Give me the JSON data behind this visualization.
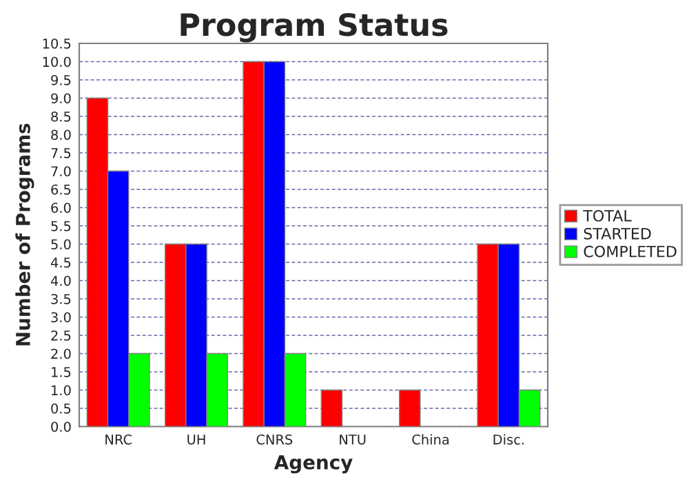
{
  "chart_data": {
    "type": "bar",
    "title": "Program Status",
    "xlabel": "Agency",
    "ylabel": "Number of Programs",
    "categories": [
      "NRC",
      "UH",
      "CNRS",
      "NTU",
      "China",
      "Disc."
    ],
    "series": [
      {
        "name": "TOTAL",
        "color": "#ff0000",
        "values": [
          9,
          5,
          10,
          1,
          1,
          5
        ]
      },
      {
        "name": "STARTED",
        "color": "#0000ff",
        "values": [
          7,
          5,
          10,
          0,
          0,
          5
        ]
      },
      {
        "name": "COMPLETED",
        "color": "#00ff00",
        "values": [
          2,
          2,
          2,
          0,
          0,
          1
        ]
      }
    ],
    "ylim": [
      0,
      10.5
    ],
    "yticks": [
      {
        "value": 0,
        "label": "0.0"
      },
      {
        "value": 0.5,
        "label": "0.5"
      },
      {
        "value": 1,
        "label": "1.0"
      },
      {
        "value": 1.5,
        "label": "1.5"
      },
      {
        "value": 2,
        "label": "2.0"
      },
      {
        "value": 2.5,
        "label": "2.5"
      },
      {
        "value": 3,
        "label": "3.0"
      },
      {
        "value": 3.5,
        "label": "3.5"
      },
      {
        "value": 4,
        "label": "4.0"
      },
      {
        "value": 4.5,
        "label": "4.5"
      },
      {
        "value": 5,
        "label": "5.0"
      },
      {
        "value": 5.5,
        "label": "5.5"
      },
      {
        "value": 6,
        "label": "6.0"
      },
      {
        "value": 6.5,
        "label": "6.5"
      },
      {
        "value": 7,
        "label": "7.0"
      },
      {
        "value": 7.5,
        "label": "7.5"
      },
      {
        "value": 8,
        "label": "8.0"
      },
      {
        "value": 8.5,
        "label": "8.5"
      },
      {
        "value": 9,
        "label": "9.0"
      },
      {
        "value": 9.5,
        "label": "9.5"
      },
      {
        "value": 10,
        "label": "10.0"
      },
      {
        "value": 10.5,
        "label": "10.5"
      }
    ],
    "grid": "y",
    "legend": "right"
  }
}
